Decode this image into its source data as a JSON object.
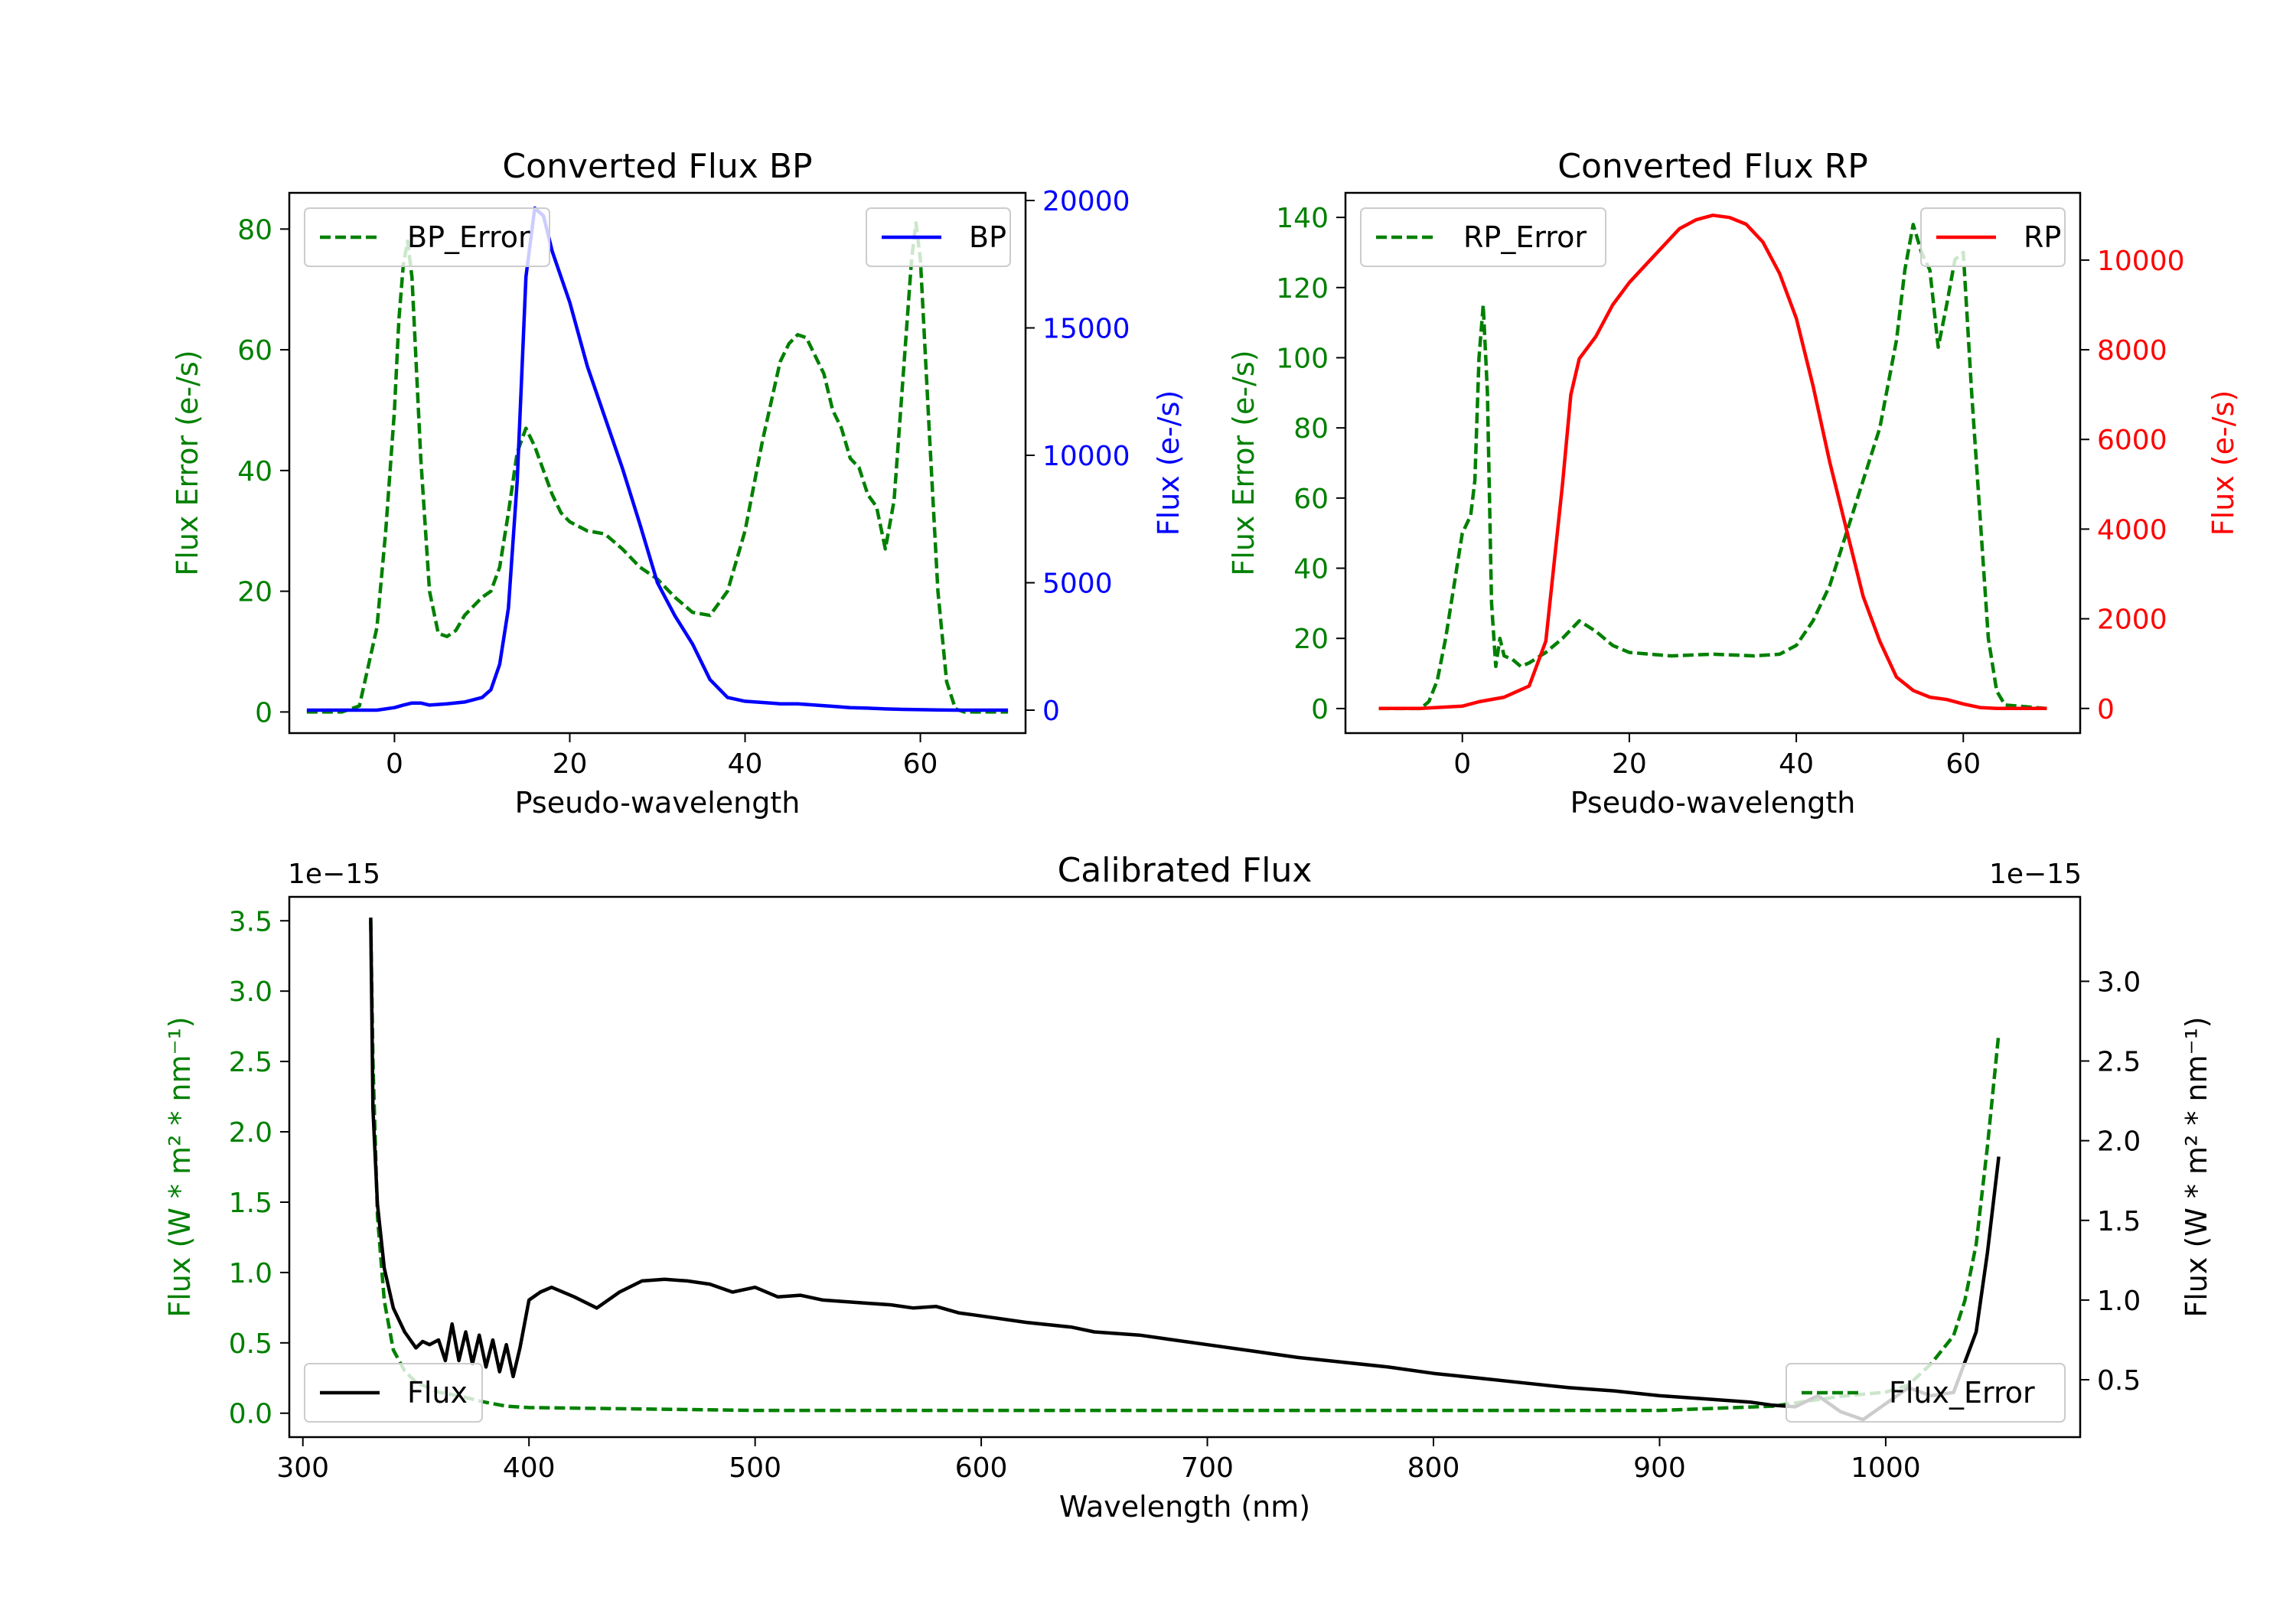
{
  "colors": {
    "green": "#008000",
    "blue": "#0000ff",
    "red": "#ff0000",
    "black": "#000000"
  },
  "chart_data": [
    {
      "type": "line",
      "title": "Converted Flux BP",
      "xlabel": "Pseudo-wavelength",
      "ylabel_left": "Flux Error (e-/s)",
      "ylabel_right": "Flux (e-/s)",
      "xlim": [
        -12,
        72
      ],
      "ylim_left": [
        -3.5,
        86
      ],
      "ylim_right": [
        -900,
        20300
      ],
      "xticks": [
        0,
        20,
        40,
        60
      ],
      "yticks_left": [
        0,
        20,
        40,
        60,
        80
      ],
      "yticks_right": [
        0,
        5000,
        10000,
        15000,
        20000
      ],
      "series": [
        {
          "name": "BP_Error",
          "axis": "left",
          "color": "green",
          "style": "dashed",
          "x": [
            -10,
            -6,
            -4,
            -2,
            -1,
            0,
            0.5,
            1,
            1.5,
            2,
            3,
            4,
            5,
            6,
            7,
            8,
            9,
            10,
            11,
            12,
            13,
            14,
            15,
            16,
            17,
            18,
            19,
            20,
            22,
            24,
            26,
            28,
            30,
            32,
            34,
            36,
            38,
            40,
            42,
            44,
            45,
            46,
            47,
            48,
            49,
            50,
            51,
            52,
            53,
            54,
            55,
            56,
            57,
            58,
            59,
            59.5,
            60,
            61,
            62,
            63,
            64,
            65,
            66,
            68,
            70
          ],
          "y": [
            0,
            0,
            1,
            14,
            30,
            50,
            65,
            74,
            78,
            72,
            42,
            20,
            13,
            12.5,
            13.5,
            16,
            17.5,
            19,
            20,
            24,
            33,
            43,
            47,
            44,
            40,
            36,
            33,
            31.5,
            30,
            29.5,
            27,
            24,
            22,
            19,
            16.5,
            16,
            20,
            30,
            45,
            58,
            61,
            62.5,
            62,
            59,
            56,
            50,
            47,
            42,
            40.5,
            36,
            34,
            27,
            35,
            55,
            75,
            81,
            75,
            47,
            20,
            5,
            0.5,
            0,
            0,
            0,
            0
          ]
        },
        {
          "name": "BP",
          "axis": "right",
          "color": "blue",
          "style": "solid",
          "x": [
            -10,
            -5,
            -2,
            0,
            1,
            2,
            3,
            4,
            6,
            8,
            10,
            11,
            12,
            13,
            14,
            15,
            16,
            17,
            18,
            20,
            22,
            24,
            26,
            28,
            30,
            32,
            34,
            36,
            38,
            40,
            42,
            44,
            46,
            48,
            50,
            52,
            54,
            56,
            58,
            60,
            62,
            64,
            66,
            68,
            70
          ],
          "y": [
            0,
            0,
            0,
            100,
            200,
            280,
            280,
            200,
            250,
            320,
            500,
            800,
            1800,
            4000,
            9000,
            17000,
            19700,
            19400,
            18000,
            16000,
            13500,
            11500,
            9500,
            7300,
            5000,
            3700,
            2600,
            1200,
            500,
            350,
            300,
            250,
            250,
            200,
            150,
            100,
            80,
            50,
            30,
            20,
            10,
            0,
            0,
            0,
            0
          ]
        }
      ],
      "legends": [
        {
          "label": "BP_Error",
          "placement": "upper left"
        },
        {
          "label": "BP",
          "placement": "upper right"
        }
      ]
    },
    {
      "type": "line",
      "title": "Converted Flux RP",
      "xlabel": "Pseudo-wavelength",
      "ylabel_left": "Flux Error (e-/s)",
      "ylabel_right": "Flux (e-/s)",
      "xlim": [
        -14,
        74
      ],
      "ylim_left": [
        -7,
        147
      ],
      "ylim_right": [
        -550,
        11500
      ],
      "xticks": [
        0,
        20,
        40,
        60
      ],
      "yticks_left": [
        0,
        20,
        40,
        60,
        80,
        100,
        120,
        140
      ],
      "yticks_right": [
        0,
        2000,
        4000,
        6000,
        8000,
        10000
      ],
      "series": [
        {
          "name": "RP_Error",
          "axis": "left",
          "color": "green",
          "style": "dashed",
          "x": [
            -10,
            -5,
            -4,
            -3,
            -2,
            -1,
            0,
            1,
            1.5,
            2,
            2.5,
            3,
            3.5,
            4,
            4.5,
            5,
            6,
            7,
            8,
            10,
            12,
            14,
            16,
            18,
            20,
            25,
            30,
            35,
            38,
            40,
            42,
            44,
            46,
            48,
            50,
            52,
            53,
            54,
            55,
            56,
            57,
            58,
            59,
            60,
            61,
            62,
            63,
            64,
            65,
            70
          ],
          "y": [
            0,
            0,
            2,
            8,
            20,
            35,
            50,
            55,
            65,
            100,
            115,
            90,
            30,
            12,
            20,
            15,
            14,
            12,
            13,
            16,
            20,
            25,
            22,
            18,
            16,
            15,
            15.5,
            15,
            15.5,
            18,
            25,
            35,
            50,
            65,
            80,
            105,
            125,
            138,
            130,
            125,
            103,
            115,
            128,
            130,
            90,
            55,
            20,
            5,
            1,
            0
          ]
        },
        {
          "name": "RP",
          "axis": "right",
          "color": "red",
          "style": "solid",
          "x": [
            -10,
            -5,
            0,
            2,
            5,
            8,
            10,
            12,
            13,
            14,
            16,
            18,
            20,
            22,
            24,
            26,
            28,
            30,
            32,
            34,
            36,
            38,
            40,
            42,
            44,
            46,
            48,
            50,
            52,
            54,
            56,
            58,
            60,
            62,
            64,
            66,
            70
          ],
          "y": [
            0,
            0,
            50,
            150,
            250,
            500,
            1500,
            5000,
            7000,
            7800,
            8300,
            9000,
            9500,
            9900,
            10300,
            10700,
            10900,
            11000,
            10950,
            10800,
            10400,
            9700,
            8700,
            7200,
            5500,
            4000,
            2500,
            1500,
            700,
            400,
            250,
            200,
            100,
            20,
            0,
            0,
            0
          ]
        }
      ],
      "legends": [
        {
          "label": "RP_Error",
          "placement": "upper left"
        },
        {
          "label": "RP",
          "placement": "upper right"
        }
      ]
    },
    {
      "type": "line",
      "title": "Calibrated Flux",
      "xlabel": "Wavelength (nm)",
      "ylabel_left": "Flux (W * m² * nm⁻¹)",
      "ylabel_right": "Flux (W * m² * nm⁻¹)",
      "offset_text_left": "1e−15",
      "offset_text_right": "1e−15",
      "xlim": [
        294,
        1086
      ],
      "ylim_left": [
        -0.17,
        3.67
      ],
      "ylim_right": [
        0.14,
        3.53
      ],
      "xticks": [
        300,
        400,
        500,
        600,
        700,
        800,
        900,
        1000
      ],
      "yticks_left": [
        0.0,
        0.5,
        1.0,
        1.5,
        2.0,
        2.5,
        3.0,
        3.5
      ],
      "yticks_right": [
        0.5,
        1.0,
        1.5,
        2.0,
        2.5,
        3.0
      ],
      "series": [
        {
          "name": "Flux_Error",
          "axis": "left",
          "color": "green",
          "style": "dashed",
          "x": [
            330,
            331,
            333,
            336,
            340,
            345,
            350,
            360,
            370,
            380,
            390,
            400,
            450,
            500,
            600,
            700,
            800,
            900,
            950,
            980,
            1000,
            1010,
            1020,
            1030,
            1035,
            1040,
            1045,
            1050
          ],
          "y": [
            3.5,
            2.5,
            1.4,
            0.8,
            0.45,
            0.3,
            0.22,
            0.15,
            0.12,
            0.08,
            0.05,
            0.04,
            0.03,
            0.02,
            0.02,
            0.02,
            0.02,
            0.02,
            0.05,
            0.12,
            0.15,
            0.2,
            0.35,
            0.55,
            0.8,
            1.2,
            1.9,
            2.7
          ]
        },
        {
          "name": "Flux",
          "axis": "right",
          "color": "black",
          "style": "solid",
          "x": [
            330,
            331,
            333,
            336,
            340,
            345,
            350,
            353,
            356,
            360,
            363,
            366,
            369,
            372,
            375,
            378,
            381,
            384,
            387,
            390,
            393,
            396,
            400,
            405,
            410,
            420,
            430,
            440,
            450,
            460,
            470,
            480,
            490,
            500,
            510,
            520,
            530,
            540,
            550,
            560,
            570,
            580,
            590,
            600,
            620,
            640,
            650,
            660,
            670,
            680,
            700,
            720,
            740,
            760,
            780,
            800,
            820,
            840,
            860,
            880,
            900,
            920,
            940,
            950,
            960,
            970,
            980,
            990,
            1000,
            1010,
            1020,
            1030,
            1040,
            1045,
            1050
          ],
          "y": [
            3.4,
            2.2,
            1.6,
            1.2,
            0.95,
            0.8,
            0.7,
            0.74,
            0.72,
            0.75,
            0.62,
            0.85,
            0.62,
            0.8,
            0.6,
            0.78,
            0.58,
            0.75,
            0.55,
            0.72,
            0.52,
            0.7,
            1.0,
            1.05,
            1.08,
            1.02,
            0.95,
            1.05,
            1.12,
            1.13,
            1.12,
            1.1,
            1.05,
            1.08,
            1.02,
            1.03,
            1.0,
            0.99,
            0.98,
            0.97,
            0.95,
            0.96,
            0.92,
            0.9,
            0.86,
            0.83,
            0.8,
            0.79,
            0.78,
            0.76,
            0.72,
            0.68,
            0.64,
            0.61,
            0.58,
            0.54,
            0.51,
            0.48,
            0.45,
            0.43,
            0.4,
            0.38,
            0.36,
            0.34,
            0.33,
            0.4,
            0.3,
            0.25,
            0.35,
            0.45,
            0.4,
            0.42,
            0.8,
            1.3,
            1.9
          ]
        }
      ],
      "legends": [
        {
          "label": "Flux",
          "placement": "lower left"
        },
        {
          "label": "Flux_Error",
          "placement": "lower right"
        }
      ]
    }
  ]
}
